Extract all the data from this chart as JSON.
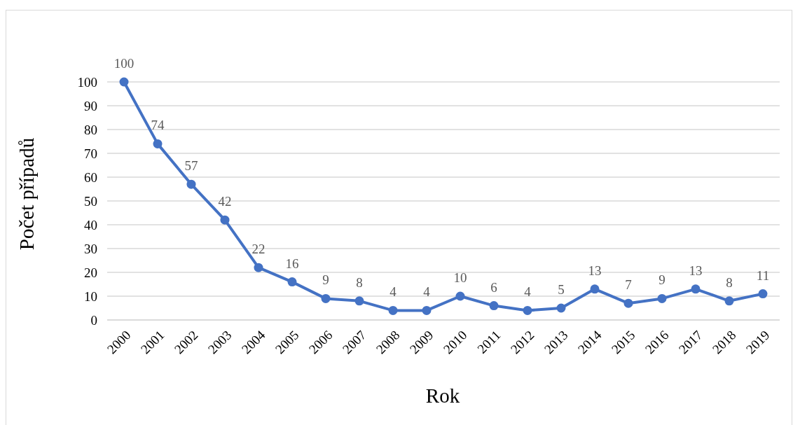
{
  "chart_data": {
    "type": "line",
    "xlabel": "Rok",
    "ylabel": "Počet případů",
    "categories": [
      "2000",
      "2001",
      "2002",
      "2003",
      "2004",
      "2005",
      "2006",
      "2007",
      "2008",
      "2009",
      "2010",
      "2011",
      "2012",
      "2013",
      "2014",
      "2015",
      "2016",
      "2017",
      "2018",
      "2019"
    ],
    "series": [
      {
        "color": "#4472c4",
        "values": [
          100,
          74,
          57,
          42,
          22,
          16,
          9,
          8,
          4,
          4,
          10,
          6,
          4,
          5,
          13,
          7,
          9,
          13,
          8,
          11
        ]
      }
    ],
    "ylim": [
      0,
      100
    ],
    "yticks": [
      0,
      10,
      20,
      30,
      40,
      50,
      60,
      70,
      80,
      90,
      100
    ],
    "grid": "y",
    "marker": "circle",
    "line_style": "solid",
    "data_labels": true
  }
}
